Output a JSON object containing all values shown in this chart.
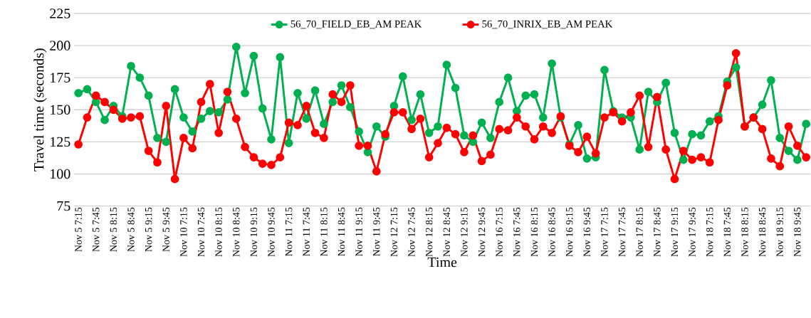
{
  "chart_data": {
    "type": "line",
    "xlabel": "Time",
    "ylabel": "Travel time (seconds)",
    "categories": [
      "Nov 5 7:15",
      null,
      "Nov 5 7:45",
      null,
      "Nov 5 8:15",
      null,
      "Nov 5 8:45",
      null,
      "Nov 5 9:15",
      null,
      "Nov 5 9:45",
      null,
      "Nov 10 7:15",
      null,
      "Nov 10 7:45",
      null,
      "Nov 10 8:15",
      null,
      "Nov 10 8:45",
      null,
      "Nov 10 9:15",
      null,
      "Nov 10 9:45",
      null,
      "Nov 11 7:15",
      null,
      "Nov 11 7:45",
      null,
      "Nov 11 8:15",
      null,
      "Nov 11 8:45",
      null,
      "Nov 11 9:15",
      null,
      "Nov 11 9:45",
      null,
      "Nov 12 7:15",
      null,
      "Nov 12 7:45",
      null,
      "Nov 12 8:15",
      null,
      "Nov 12 8:45",
      null,
      "Nov 12 9:15",
      null,
      "Nov 12 9:45",
      null,
      "Nov 16 7:15",
      null,
      "Nov 16 7:45",
      null,
      "Nov 16 8:15",
      null,
      "Nov 16 8:45",
      null,
      "Nov 16 9:15",
      null,
      "Nov 16 9:45",
      null,
      "Nov 17 7:15",
      null,
      "Nov 17 7:45",
      null,
      "Nov 17 8:15",
      null,
      "Nov 17 8:45",
      null,
      "Nov 17 9:15",
      null,
      "Nov 17 9:45",
      null,
      "Nov 18 7:15",
      null,
      "Nov 18 7:45",
      null,
      "Nov 18 8:15",
      null,
      "Nov 18 8:45",
      null,
      "Nov 18 9:15",
      null,
      "Nov 18 9:45",
      null
    ],
    "series": [
      {
        "name": "56_70_FIELD_EB_AM PEAK",
        "color": "#00b050",
        "values": [
          163,
          166,
          156,
          142,
          153,
          145,
          184,
          175,
          161,
          128,
          125,
          166,
          144,
          133,
          143,
          149,
          148,
          158,
          199,
          163,
          192,
          151,
          127,
          191,
          124,
          163,
          143,
          165,
          139,
          156,
          169,
          152,
          133,
          117,
          137,
          129,
          153,
          176,
          142,
          162,
          132,
          137,
          185,
          167,
          130,
          125,
          140,
          128,
          156,
          175,
          149,
          161,
          162,
          144,
          186,
          144,
          123,
          138,
          112,
          113,
          181,
          149,
          144,
          144,
          119,
          164,
          156,
          171,
          132,
          111,
          131,
          130,
          141,
          145,
          172,
          183,
          137,
          144,
          154,
          173,
          128,
          118,
          111,
          139
        ]
      },
      {
        "name": "56_70_INRIX_EB_AM PEAK",
        "color": "#ff0000",
        "values": [
          123,
          144,
          161,
          156,
          150,
          143,
          144,
          145,
          118,
          109,
          153,
          96,
          128,
          120,
          156,
          170,
          132,
          164,
          143,
          121,
          113,
          108,
          107,
          113,
          140,
          138,
          153,
          132,
          128,
          162,
          156,
          169,
          122,
          122,
          102,
          131,
          148,
          148,
          135,
          143,
          113,
          124,
          136,
          131,
          117,
          130,
          110,
          115,
          135,
          134,
          144,
          137,
          127,
          137,
          132,
          145,
          122,
          117,
          129,
          116,
          144,
          148,
          141,
          148,
          161,
          121,
          160,
          119,
          96,
          118,
          111,
          113,
          109,
          142,
          169,
          194,
          137,
          144,
          135,
          112,
          106,
          137,
          122,
          113
        ]
      }
    ],
    "ylim": [
      75,
      225
    ],
    "yticks": [
      75,
      100,
      125,
      150,
      175,
      200,
      225
    ],
    "grid": "y",
    "legend": "top",
    "marker": "circle",
    "line_style": "solid"
  }
}
